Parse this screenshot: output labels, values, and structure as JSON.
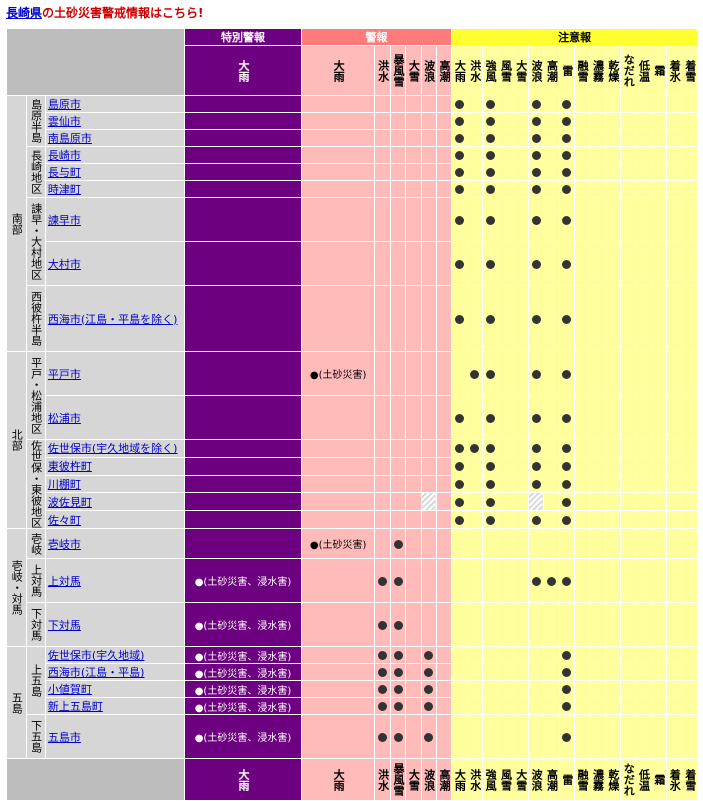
{
  "title": {
    "prefecture_link": "長崎県",
    "rest": "の土砂災害警戒情報はこちら!"
  },
  "groups": {
    "special": "特別警報",
    "warning": "警報",
    "advisory": "注意報"
  },
  "headers": {
    "special": [
      "大雨"
    ],
    "warning": [
      "大雨",
      "洪水",
      "暴風雪",
      "大雪",
      "波浪",
      "高潮"
    ],
    "advisory": [
      "大雨",
      "洪水",
      "強風",
      "風雪",
      "大雪",
      "波浪",
      "高潮",
      "雷",
      "融雪",
      "濃霧",
      "乾燥",
      "なだれ",
      "低温",
      "霜",
      "着氷",
      "着雪"
    ]
  },
  "regions": [
    {
      "name": "南部",
      "subregions": [
        {
          "name": "島原半島",
          "cities": [
            {
              "name": "島原市",
              "a": [
                1,
                0,
                1,
                0,
                0,
                1,
                0,
                1
              ]
            },
            {
              "name": "雲仙市",
              "a": [
                1,
                0,
                1,
                0,
                0,
                1,
                0,
                1
              ]
            },
            {
              "name": "南島原市",
              "a": [
                1,
                0,
                1,
                0,
                0,
                1,
                0,
                1
              ]
            }
          ]
        },
        {
          "name": "長崎地区",
          "cities": [
            {
              "name": "長崎市",
              "a": [
                1,
                0,
                1,
                0,
                0,
                1,
                0,
                1
              ]
            },
            {
              "name": "長与町",
              "a": [
                1,
                0,
                1,
                0,
                0,
                1,
                0,
                1
              ]
            },
            {
              "name": "時津町",
              "a": [
                1,
                0,
                1,
                0,
                0,
                1,
                0,
                1
              ]
            }
          ]
        },
        {
          "name": "諫早・大村地区",
          "cities": [
            {
              "name": "諫早市",
              "a": [
                1,
                0,
                1,
                0,
                0,
                1,
                0,
                1
              ]
            },
            {
              "name": "大村市",
              "a": [
                1,
                0,
                1,
                0,
                0,
                1,
                0,
                1
              ]
            }
          ]
        },
        {
          "name": "西彼杵半島",
          "cities": [
            {
              "name": "西海市(江島・平島を除く)",
              "a": [
                1,
                0,
                1,
                0,
                0,
                1,
                0,
                1
              ]
            }
          ]
        }
      ]
    },
    {
      "name": "北部",
      "subregions": [
        {
          "name": "平戸・松浦地区",
          "cities": [
            {
              "name": "平戸市",
              "w_note": "●(土砂災害)",
              "a": [
                0,
                1,
                1,
                0,
                0,
                1,
                0,
                1
              ]
            },
            {
              "name": "松浦市",
              "a": [
                1,
                0,
                1,
                0,
                0,
                1,
                0,
                1
              ]
            }
          ]
        },
        {
          "name": "佐世保・東彼地区",
          "cities": [
            {
              "name": "佐世保市(宇久地域を除く)",
              "a": [
                1,
                1,
                1,
                0,
                0,
                1,
                0,
                1
              ]
            },
            {
              "name": "東彼杵町",
              "a": [
                1,
                0,
                1,
                0,
                0,
                1,
                0,
                1
              ]
            },
            {
              "name": "川棚町",
              "a": [
                1,
                0,
                1,
                0,
                0,
                1,
                0,
                1
              ]
            },
            {
              "name": "波佐見町",
              "hatch": true,
              "a": [
                1,
                0,
                1,
                0,
                0,
                0,
                0,
                1
              ]
            },
            {
              "name": "佐々町",
              "a": [
                1,
                0,
                1,
                0,
                0,
                1,
                0,
                1
              ]
            }
          ]
        }
      ]
    },
    {
      "name": "壱岐・対馬",
      "subregions": [
        {
          "name": "壱岐",
          "cities": [
            {
              "name": "壱岐市",
              "w_note": "●(土砂災害)",
              "w": [
                0,
                0,
                1,
                0,
                0,
                0
              ]
            }
          ]
        },
        {
          "name": "上対馬",
          "cities": [
            {
              "name": "上対馬",
              "s_note": "●(土砂災害、浸水害)",
              "w": [
                0,
                1,
                1,
                0,
                0,
                0
              ],
              "a": [
                0,
                0,
                0,
                0,
                0,
                1,
                1,
                1
              ]
            }
          ]
        },
        {
          "name": "下対馬",
          "cities": [
            {
              "name": "下対馬",
              "s_note": "●(土砂災害、浸水害)",
              "w": [
                0,
                1,
                1,
                0,
                0,
                0
              ]
            }
          ]
        }
      ]
    },
    {
      "name": "五島",
      "subregions": [
        {
          "name": "上五島",
          "cities": [
            {
              "name": "佐世保市(宇久地域)",
              "s_note": "●(土砂災害、浸水害)",
              "w": [
                0,
                1,
                1,
                0,
                1,
                0
              ],
              "a": [
                0,
                0,
                0,
                0,
                0,
                0,
                0,
                1
              ]
            },
            {
              "name": "西海市(江島・平島)",
              "s_note": "●(土砂災害、浸水害)",
              "w": [
                0,
                1,
                1,
                0,
                1,
                0
              ],
              "a": [
                0,
                0,
                0,
                0,
                0,
                0,
                0,
                1
              ]
            },
            {
              "name": "小値賀町",
              "s_note": "●(土砂災害、浸水害)",
              "w": [
                0,
                1,
                1,
                0,
                1,
                0
              ],
              "a": [
                0,
                0,
                0,
                0,
                0,
                0,
                0,
                1
              ]
            },
            {
              "name": "新上五島町",
              "s_note": "●(土砂災害、浸水害)",
              "w": [
                0,
                1,
                1,
                0,
                1,
                0
              ],
              "a": [
                0,
                0,
                0,
                0,
                0,
                0,
                0,
                1
              ]
            }
          ]
        },
        {
          "name": "下五島",
          "cities": [
            {
              "name": "五島市",
              "s_note": "●(土砂災害、浸水害)",
              "w": [
                0,
                1,
                1,
                0,
                1,
                0
              ],
              "a": [
                0,
                0,
                0,
                0,
                0,
                0,
                0,
                1
              ]
            }
          ]
        }
      ]
    }
  ],
  "colors": {
    "special": "#6d0080",
    "warning_group": "#ff7a7a",
    "warning_cell": "#ffbaba",
    "advisory_group": "#ffff30",
    "advisory_cell": "#ffff9e",
    "region": "#d6d6d6"
  }
}
